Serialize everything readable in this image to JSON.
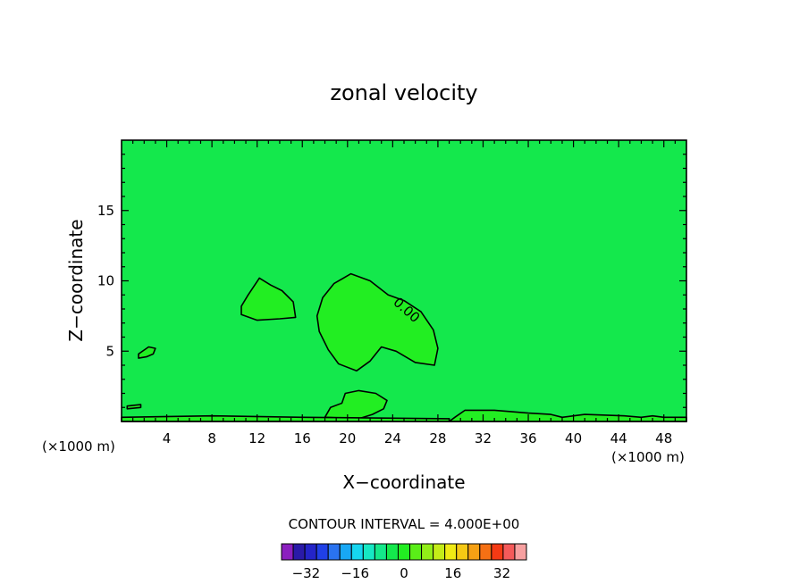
{
  "chart_data": {
    "type": "heatmap",
    "title": "zonal velocity",
    "xlabel": "X−coordinate",
    "ylabel": "Z−coordinate",
    "x_unit_left": "(×1000 m)",
    "x_unit_right": "(×1000 m)",
    "xlim": [
      0,
      50
    ],
    "ylim": [
      0,
      20
    ],
    "x_ticks": [
      4,
      8,
      12,
      16,
      20,
      24,
      28,
      32,
      36,
      40,
      44,
      48
    ],
    "x_tick_labels": [
      "4",
      "8",
      "12",
      "16",
      "20",
      "24",
      "28",
      "32",
      "36",
      "40",
      "44",
      "48"
    ],
    "y_ticks": [
      5,
      10,
      15
    ],
    "y_tick_labels": [
      "5",
      "10",
      "15"
    ],
    "background_value": -2,
    "regions": [
      {
        "value": 0.5,
        "points": [
          [
            10.6,
            8.2
          ],
          [
            11.2,
            9.0
          ],
          [
            12.2,
            10.2
          ],
          [
            13.2,
            9.7
          ],
          [
            14.2,
            9.3
          ],
          [
            15.2,
            8.5
          ],
          [
            15.4,
            7.4
          ],
          [
            14.0,
            7.3
          ],
          [
            12.0,
            7.2
          ],
          [
            10.6,
            7.6
          ]
        ]
      },
      {
        "value": 0.5,
        "points": [
          [
            17.3,
            7.5
          ],
          [
            17.8,
            8.8
          ],
          [
            18.8,
            9.8
          ],
          [
            20.3,
            10.5
          ],
          [
            22.0,
            10.0
          ],
          [
            23.6,
            9.0
          ],
          [
            25.0,
            8.6
          ],
          [
            26.5,
            7.8
          ],
          [
            27.6,
            6.5
          ],
          [
            28.0,
            5.2
          ],
          [
            27.7,
            4.0
          ],
          [
            26.0,
            4.2
          ],
          [
            24.3,
            5.0
          ],
          [
            23.0,
            5.3
          ],
          [
            22.0,
            4.3
          ],
          [
            20.8,
            3.6
          ],
          [
            19.2,
            4.1
          ],
          [
            18.3,
            5.1
          ],
          [
            17.5,
            6.4
          ]
        ]
      },
      {
        "value": 0.5,
        "points": [
          [
            1.5,
            4.8
          ],
          [
            2.4,
            5.3
          ],
          [
            3.0,
            5.2
          ],
          [
            2.8,
            4.8
          ],
          [
            2.2,
            4.6
          ],
          [
            1.5,
            4.5
          ]
        ]
      },
      {
        "value": 0.5,
        "points": [
          [
            29.5,
            0.3
          ],
          [
            30.4,
            0.8
          ],
          [
            33.0,
            0.8
          ],
          [
            36.0,
            0.6
          ],
          [
            38.0,
            0.5
          ],
          [
            39.0,
            0.3
          ],
          [
            41.0,
            0.5
          ],
          [
            44.5,
            0.4
          ],
          [
            46.0,
            0.3
          ],
          [
            47.0,
            0.4
          ],
          [
            48.0,
            0.3
          ],
          [
            50.0,
            0.3
          ],
          [
            50.0,
            0.0
          ],
          [
            29.0,
            0.0
          ]
        ]
      },
      {
        "value": 0.5,
        "points": [
          [
            0.5,
            1.1
          ],
          [
            1.7,
            1.2
          ],
          [
            1.7,
            1.0
          ],
          [
            0.5,
            0.9
          ]
        ]
      },
      {
        "value": 2,
        "points": [
          [
            18.0,
            0.3
          ],
          [
            18.5,
            1.0
          ],
          [
            19.5,
            1.3
          ],
          [
            19.8,
            2.0
          ],
          [
            21.0,
            2.2
          ],
          [
            22.5,
            2.0
          ],
          [
            23.5,
            1.5
          ],
          [
            23.2,
            0.9
          ],
          [
            22.2,
            0.5
          ],
          [
            21.0,
            0.2
          ]
        ]
      },
      {
        "value": 2,
        "points": [
          [
            0.0,
            0.3
          ],
          [
            8.0,
            0.4
          ],
          [
            16.0,
            0.3
          ],
          [
            29.0,
            0.2
          ],
          [
            29.0,
            0.0
          ],
          [
            0.0,
            0.0
          ]
        ]
      }
    ],
    "contour_labels": [
      {
        "text": "0.00",
        "x": 25.2,
        "y": 7.9,
        "angle": 42
      }
    ],
    "colorbar": {
      "caption": "CONTOUR INTERVAL = 4.000E+00",
      "levels": [
        -40,
        -36,
        -32,
        -28,
        -24,
        -20,
        -16,
        -12,
        -8,
        -4,
        0,
        4,
        8,
        12,
        16,
        20,
        24,
        28,
        32,
        36,
        40
      ],
      "colors": [
        "#8b1fbf",
        "#2a1aa8",
        "#2424c8",
        "#2040e6",
        "#2a73f0",
        "#18a8f5",
        "#16d6f0",
        "#16e8c4",
        "#14e88a",
        "#14e84c",
        "#22ee22",
        "#5aee18",
        "#92ee18",
        "#c4ec18",
        "#f0ea14",
        "#f5c814",
        "#f5a014",
        "#f57014",
        "#f53a14",
        "#f55a5a",
        "#f7a0a0"
      ],
      "tick_values": [
        -32,
        -16,
        0,
        16,
        32
      ],
      "tick_labels": [
        "−32",
        "−16",
        "0",
        "16",
        "32"
      ]
    }
  }
}
